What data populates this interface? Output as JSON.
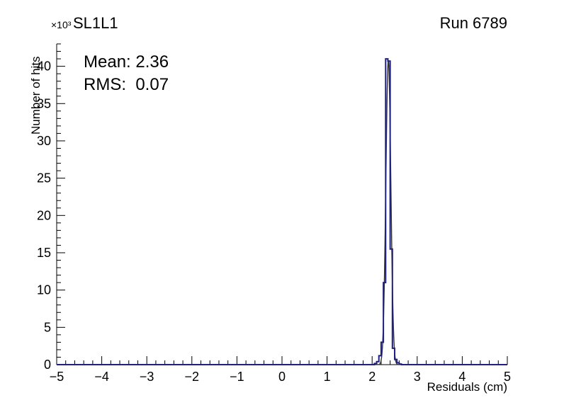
{
  "chart_data": {
    "type": "bar",
    "subtype": "step-histogram",
    "title": "SL1L1",
    "top_right_label": "Run 6789",
    "xlabel": "Residuals (cm)",
    "ylabel": "Number of hits",
    "y_multiplier": "×10³",
    "annotations": {
      "mean": "Mean: 2.36",
      "rms": "RMS:  0.07"
    },
    "mean": 2.36,
    "rms": 0.07,
    "xlim": [
      -5,
      5
    ],
    "ylim": [
      0,
      43000
    ],
    "x_tick_values": [
      -5,
      -4,
      -3,
      -2,
      -1,
      0,
      1,
      2,
      3,
      4,
      5
    ],
    "x_tick_labels": [
      "−5",
      "−4",
      "−3",
      "−2",
      "−1",
      "0",
      "1",
      "2",
      "3",
      "4",
      "5"
    ],
    "x_minor_step": 0.2,
    "y_tick_values": [
      0,
      5000,
      10000,
      15000,
      20000,
      25000,
      30000,
      35000,
      40000
    ],
    "y_tick_labels": [
      "0",
      "5",
      "10",
      "15",
      "20",
      "25",
      "30",
      "35",
      "40"
    ],
    "y_minor_step": 1000,
    "grid": false,
    "histogram": {
      "bin_start": 2.05,
      "bin_width": 0.05,
      "counts": [
        150,
        400,
        1200,
        3000,
        11000,
        41000,
        40700,
        15500,
        2200,
        700,
        250,
        80,
        0
      ],
      "color": "#20207f"
    },
    "fit": {
      "mean": 2.36,
      "sigma": 0.055,
      "amplitude": 40800,
      "color": "#333333"
    },
    "axis_color": "#000000",
    "background_color": "#ffffff"
  }
}
